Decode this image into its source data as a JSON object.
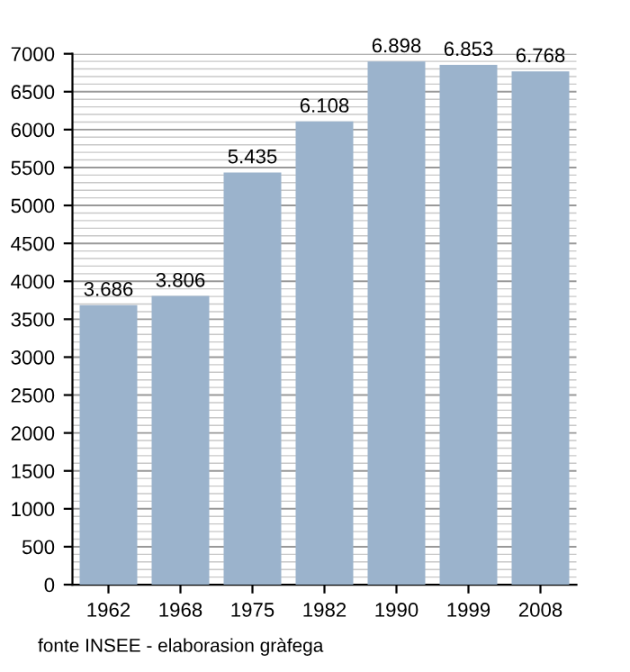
{
  "chart_data": {
    "type": "bar",
    "categories": [
      "1962",
      "1968",
      "1975",
      "1982",
      "1990",
      "1999",
      "2008"
    ],
    "values": [
      3686,
      3806,
      5435,
      6108,
      6898,
      6853,
      6768
    ],
    "value_labels": [
      "3.686",
      "3.806",
      "5.435",
      "6.108",
      "6.898",
      "6.853",
      "6.768"
    ],
    "color": "#9bb3cc",
    "ylim": [
      0,
      7000
    ],
    "yticks": [
      0,
      500,
      1000,
      1500,
      2000,
      2500,
      3000,
      3500,
      4000,
      4500,
      5000,
      5500,
      6000,
      6500,
      7000
    ],
    "grid": "y",
    "annotations": [
      "fonte INSEE - elaborasion gràfega"
    ]
  }
}
